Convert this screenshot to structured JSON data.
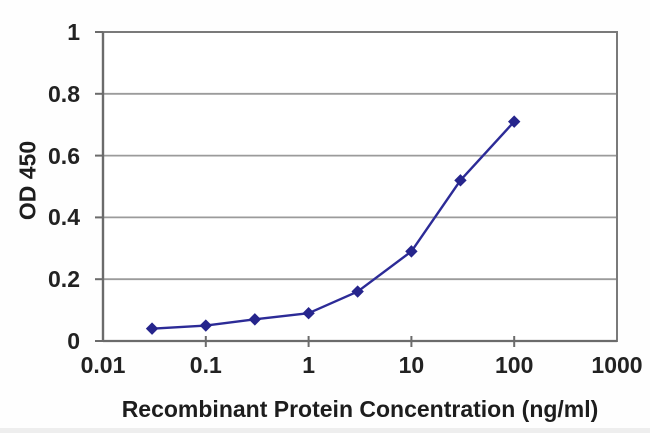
{
  "chart_data": {
    "type": "line",
    "title": "",
    "xlabel": "Recombinant Protein Concentration (ng/ml)",
    "ylabel": "OD 450",
    "x_scale": "log",
    "y_scale": "linear",
    "xlim": [
      0.01,
      1000
    ],
    "ylim": [
      0,
      1
    ],
    "x_ticks": [
      "0.01",
      "0.1",
      "1",
      "10",
      "100",
      "1000"
    ],
    "y_ticks": [
      "0",
      "0.2",
      "0.4",
      "0.6",
      "0.8",
      "1"
    ],
    "grid": "horizontal-only",
    "legend": "none",
    "series": [
      {
        "name": "OD450",
        "marker": "diamond",
        "points": [
          {
            "x": 0.03,
            "y": 0.04
          },
          {
            "x": 0.1,
            "y": 0.05
          },
          {
            "x": 0.3,
            "y": 0.07
          },
          {
            "x": 1,
            "y": 0.09
          },
          {
            "x": 3,
            "y": 0.16
          },
          {
            "x": 10,
            "y": 0.29
          },
          {
            "x": 30,
            "y": 0.52
          },
          {
            "x": 100,
            "y": 0.71
          }
        ]
      }
    ],
    "colors": {
      "line": "#2C2B97",
      "marker": "#26258C",
      "gridline": "#9B9B9B",
      "axis": "#7A7A7A",
      "axis_dark": "#6B6B6B",
      "tick_text": "#222222",
      "plot_bg": "#FFFFFF"
    }
  }
}
